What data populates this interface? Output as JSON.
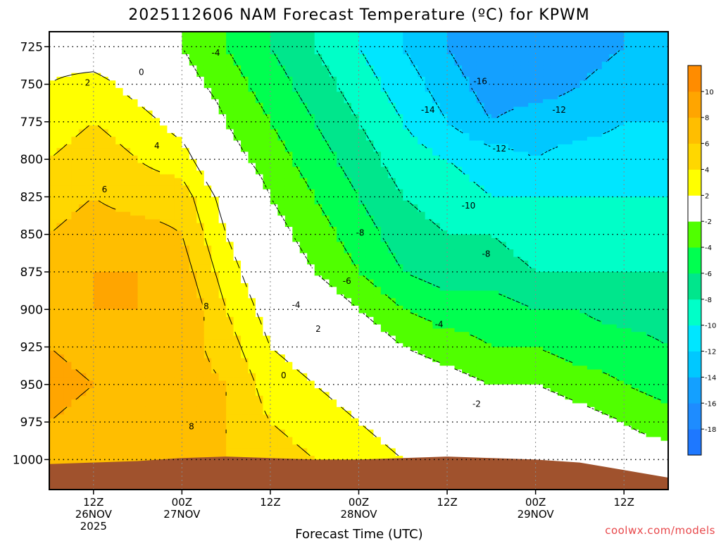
{
  "chart_data": {
    "type": "heatmap",
    "title": "2025112606 NAM Forecast Temperature (ºC) for KPWM",
    "xlabel": "Forecast Time (UTC)",
    "ylabel": "",
    "credit": "coolwx.com/models",
    "x_ticks": [
      {
        "hour": 6,
        "lines": [
          "12Z",
          "26NOV",
          "2025"
        ]
      },
      {
        "hour": 18,
        "lines": [
          "00Z",
          "27NOV"
        ]
      },
      {
        "hour": 30,
        "lines": [
          "12Z"
        ]
      },
      {
        "hour": 42,
        "lines": [
          "00Z",
          "28NOV"
        ]
      },
      {
        "hour": 54,
        "lines": [
          "12Z"
        ]
      },
      {
        "hour": 66,
        "lines": [
          "00Z",
          "29NOV"
        ]
      },
      {
        "hour": 78,
        "lines": [
          "12Z"
        ]
      }
    ],
    "x_range_hours": [
      0,
      84
    ],
    "y_ticks": [
      725,
      750,
      775,
      800,
      825,
      850,
      875,
      900,
      925,
      950,
      975,
      1000
    ],
    "y_range_hpa": [
      1020,
      715
    ],
    "grid": true,
    "colorbar": {
      "levels": [
        -20,
        -18,
        -16,
        -14,
        -12,
        -10,
        -8,
        -6,
        -4,
        -2,
        2,
        4,
        6,
        8,
        10,
        12
      ],
      "tick_labels": [
        "-18",
        "-16",
        "-14",
        "-12",
        "-10",
        "-8",
        "-6",
        "-4",
        "-2",
        "2",
        "4",
        "6",
        "8",
        "10"
      ],
      "colors": [
        "#1e78ff",
        "#1e8cff",
        "#14a0ff",
        "#00c8ff",
        "#00e6ff",
        "#00ffc8",
        "#00e68c",
        "#00ff50",
        "#50ff00",
        "#ffffff",
        "#ffff00",
        "#ffd700",
        "#ffbe00",
        "#ffa500",
        "#ff8c00"
      ]
    },
    "hours": [
      0,
      6,
      12,
      18,
      24,
      30,
      36,
      42,
      48,
      54,
      60,
      66,
      72,
      78,
      84
    ],
    "levels_hpa": [
      725,
      750,
      775,
      800,
      825,
      850,
      875,
      900,
      925,
      950,
      975,
      1000
    ],
    "ground_pressure_hpa": [
      1003,
      1002,
      1001,
      999,
      998,
      999,
      1000,
      1000,
      999,
      998,
      999,
      1000,
      1002,
      1007,
      1012
    ],
    "temperature_c": [
      [
        1,
        0,
        -1,
        -2,
        -4,
        -6,
        -8,
        -10,
        -12,
        -14,
        -16,
        -16,
        -15,
        -14,
        -13
      ],
      [
        2,
        3,
        1,
        -1,
        -3,
        -5,
        -7,
        -9,
        -11,
        -13,
        -15,
        -15,
        -14,
        -13,
        -12
      ],
      [
        3,
        4,
        3,
        1,
        -2,
        -4,
        -6,
        -8,
        -10,
        -12,
        -14,
        -13,
        -13,
        -12,
        -12
      ],
      [
        4,
        5,
        4,
        3,
        -1,
        -3,
        -5,
        -7,
        -9,
        -10,
        -11,
        -12,
        -11,
        -11,
        -11
      ],
      [
        5,
        6,
        5,
        5,
        1,
        -2,
        -4,
        -6,
        -8,
        -9,
        -10,
        -10,
        -10,
        -10,
        -10
      ],
      [
        6,
        7,
        7,
        6,
        2,
        -1,
        -3,
        -5,
        -7,
        -8,
        -8,
        -9,
        -9,
        -9,
        -9
      ],
      [
        7,
        8,
        8,
        7,
        3,
        0,
        -2,
        -4,
        -6,
        -7,
        -7,
        -8,
        -8,
        -8,
        -8
      ],
      [
        7,
        8,
        8,
        8,
        4,
        1,
        0,
        -2,
        -4,
        -5,
        -5,
        -6,
        -6,
        -7,
        -7
      ],
      [
        8,
        7,
        7,
        7,
        5,
        2,
        1,
        0,
        -2,
        -3,
        -4,
        -4,
        -5,
        -5,
        -6
      ],
      [
        9,
        8,
        7,
        7,
        6,
        3,
        2,
        1,
        0,
        -1,
        -2,
        -2,
        -3,
        -4,
        -5
      ],
      [
        8,
        7,
        7,
        8,
        6,
        4,
        3,
        2,
        1,
        1,
        0,
        0,
        -1,
        -2,
        -3
      ],
      [
        7,
        7,
        7,
        7,
        6,
        5,
        4,
        3,
        2,
        1,
        1,
        1,
        0,
        -1,
        -1
      ]
    ],
    "contour_labels": [
      {
        "text": "0",
        "hour": 12.5,
        "hpa": 742
      },
      {
        "text": "2",
        "hour": 5.2,
        "hpa": 749
      },
      {
        "text": "4",
        "hour": 14.6,
        "hpa": 791
      },
      {
        "text": "6",
        "hour": 7.5,
        "hpa": 820
      },
      {
        "text": "8",
        "hour": 21.3,
        "hpa": 898
      },
      {
        "text": "8",
        "hour": 19.3,
        "hpa": 978
      },
      {
        "text": "-4",
        "hour": 22.6,
        "hpa": 729
      },
      {
        "text": "0",
        "hour": 31.8,
        "hpa": 944
      },
      {
        "text": "2",
        "hour": 36.5,
        "hpa": 913
      },
      {
        "text": "-4",
        "hour": 33.5,
        "hpa": 897
      },
      {
        "text": "-6",
        "hour": 40.4,
        "hpa": 881
      },
      {
        "text": "-8",
        "hour": 42.2,
        "hpa": 849
      },
      {
        "text": "-10",
        "hour": 56.9,
        "hpa": 831
      },
      {
        "text": "-12",
        "hour": 61.1,
        "hpa": 793
      },
      {
        "text": "-8",
        "hour": 59.3,
        "hpa": 863
      },
      {
        "text": "-14",
        "hour": 51.4,
        "hpa": 767
      },
      {
        "text": "-16",
        "hour": 58.5,
        "hpa": 748
      },
      {
        "text": "-12",
        "hour": 69.2,
        "hpa": 767
      },
      {
        "text": "-4",
        "hour": 52.9,
        "hpa": 910
      },
      {
        "text": "-2",
        "hour": 58.0,
        "hpa": 963
      }
    ]
  }
}
